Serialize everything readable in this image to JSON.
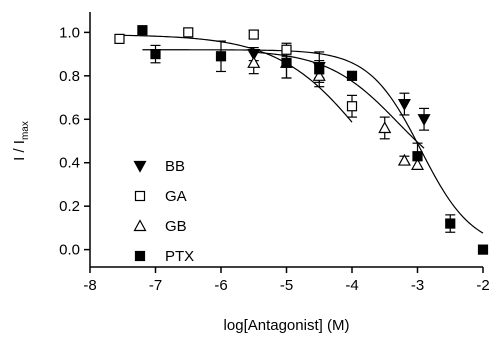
{
  "chart_data": {
    "type": "scatter",
    "title": "",
    "xlabel": "log[Antagonist] (M)",
    "ylabel_main": "I / I",
    "ylabel_sub": "max",
    "xlim": [
      -8,
      -2
    ],
    "ylim": [
      -0.08,
      1.08
    ],
    "grid": false,
    "legend_position": "lower-left",
    "x_ticks": [
      {
        "value": -8,
        "label": "-8"
      },
      {
        "value": -7,
        "label": "-7"
      },
      {
        "value": -6,
        "label": "-6"
      },
      {
        "value": -5,
        "label": "-5"
      },
      {
        "value": -4,
        "label": "-4"
      },
      {
        "value": -3,
        "label": "-3"
      },
      {
        "value": -2,
        "label": "-2"
      }
    ],
    "y_ticks": [
      {
        "value": 0.0,
        "label": "0.0"
      },
      {
        "value": 0.2,
        "label": "0.2"
      },
      {
        "value": 0.4,
        "label": "0.4"
      },
      {
        "value": 0.6,
        "label": "0.6"
      },
      {
        "value": 0.8,
        "label": "0.8"
      },
      {
        "value": 1.0,
        "label": "1.0"
      }
    ],
    "series": [
      {
        "name": "BB",
        "marker": "triangle-down",
        "filled": true,
        "color": "#000000",
        "points": [
          {
            "x": -5.5,
            "y": 0.9,
            "err": 0.03
          },
          {
            "x": -4.5,
            "y": 0.84,
            "err": 0.07
          },
          {
            "x": -3.2,
            "y": 0.67,
            "err": 0.05
          },
          {
            "x": -2.9,
            "y": 0.6,
            "err": 0.05
          }
        ],
        "curve": {
          "bottom": 0.25,
          "top": 0.92,
          "logIC50": -3.3,
          "hill": 0.8
        }
      },
      {
        "name": "GA",
        "marker": "square",
        "filled": false,
        "color": "#000000",
        "points": [
          {
            "x": -7.55,
            "y": 0.97,
            "err": 0
          },
          {
            "x": -6.5,
            "y": 1.0,
            "err": 0
          },
          {
            "x": -5.5,
            "y": 0.99,
            "err": 0.02
          },
          {
            "x": -5.0,
            "y": 0.92,
            "err": 0.03
          },
          {
            "x": -4.0,
            "y": 0.66,
            "err": 0.05
          }
        ],
        "curve": {
          "bottom": 0.0,
          "top": 0.99,
          "logIC50": -3.75,
          "hill": 0.65
        }
      },
      {
        "name": "GB",
        "marker": "triangle-up",
        "filled": false,
        "color": "#000000",
        "points": [
          {
            "x": -5.5,
            "y": 0.86,
            "err": 0.05
          },
          {
            "x": -5.0,
            "y": 0.86,
            "err": 0.07
          },
          {
            "x": -4.5,
            "y": 0.8,
            "err": 0.05
          },
          {
            "x": -3.5,
            "y": 0.56,
            "err": 0.05
          },
          {
            "x": -3.2,
            "y": 0.41,
            "err": 0.02
          },
          {
            "x": -3.0,
            "y": 0.39,
            "err": 0.02
          }
        ],
        "curve": null
      },
      {
        "name": "PTX",
        "marker": "square",
        "filled": true,
        "color": "#000000",
        "points": [
          {
            "x": -7.2,
            "y": 1.01,
            "err": 0
          },
          {
            "x": -7.0,
            "y": 0.9,
            "err": 0.04
          },
          {
            "x": -6.0,
            "y": 0.89,
            "err": 0.07
          },
          {
            "x": -5.0,
            "y": 0.86,
            "err": 0.07
          },
          {
            "x": -4.5,
            "y": 0.83,
            "err": 0.04
          },
          {
            "x": -4.0,
            "y": 0.8,
            "err": 0.01
          },
          {
            "x": -3.0,
            "y": 0.43,
            "err": 0.06
          },
          {
            "x": -2.5,
            "y": 0.12,
            "err": 0.04
          },
          {
            "x": -2.0,
            "y": 0.0,
            "err": 0
          }
        ],
        "curve": {
          "bottom": 0.0,
          "top": 0.92,
          "logIC50": -2.95,
          "hill": 1.1
        }
      }
    ]
  }
}
